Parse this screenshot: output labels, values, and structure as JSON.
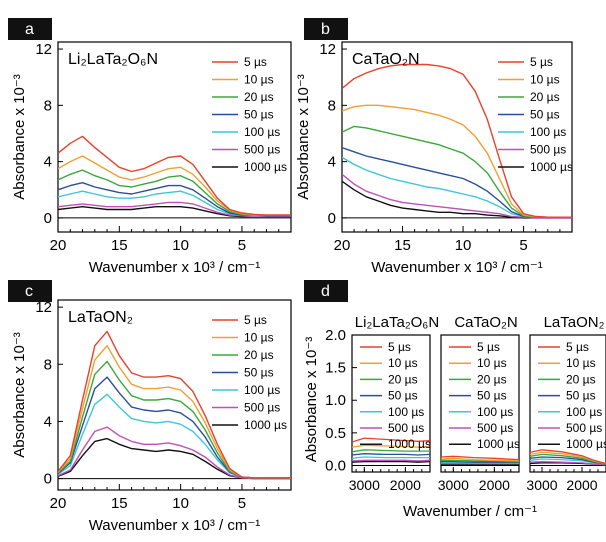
{
  "legend_times": [
    "5 µs",
    "10 µs",
    "20 µs",
    "50 µs",
    "100 µs",
    "500 µs",
    "1000 µs"
  ],
  "series_colors": [
    "#e8412c",
    "#f0a030",
    "#3aa83a",
    "#2a4f9a",
    "#3ec6d8",
    "#c050b8",
    "#111111"
  ],
  "axis_labels": {
    "wavenumber_x1000": "Wavenumber x 10³ / cm⁻¹",
    "wavenumber": "Wavenumber / cm⁻¹",
    "absorbance_x1000": "Absorbance x 10⁻³"
  },
  "chart_data": [
    {
      "panel": "a",
      "type": "line",
      "sample": "Li₂LaTa₂O₆N",
      "x_range": [
        20,
        1
      ],
      "x_ticks": [
        20,
        15,
        10,
        5
      ],
      "ylim": [
        -1,
        12.5
      ],
      "y_ticks": [
        0,
        4,
        8,
        12
      ],
      "x": [
        20,
        19,
        18,
        17,
        16,
        15,
        14,
        13,
        12,
        11,
        10,
        9,
        8,
        7,
        6,
        5,
        4,
        3,
        2,
        1
      ],
      "series": [
        {
          "name": "5 µs",
          "values": [
            4.6,
            5.3,
            5.8,
            5.0,
            4.3,
            3.6,
            3.3,
            3.5,
            3.9,
            4.3,
            4.4,
            3.8,
            2.6,
            1.4,
            0.6,
            0.35,
            0.25,
            0.2,
            0.2,
            0.2
          ]
        },
        {
          "name": "10 µs",
          "values": [
            3.5,
            4.0,
            4.4,
            3.9,
            3.4,
            2.9,
            2.7,
            2.9,
            3.2,
            3.5,
            3.6,
            3.1,
            2.2,
            1.2,
            0.55,
            0.3,
            0.2,
            0.2,
            0.2,
            0.2
          ]
        },
        {
          "name": "20 µs",
          "values": [
            2.7,
            3.1,
            3.4,
            3.0,
            2.7,
            2.3,
            2.2,
            2.4,
            2.6,
            2.9,
            3.0,
            2.6,
            1.8,
            1.0,
            0.45,
            0.25,
            0.2,
            0.2,
            0.2,
            0.2
          ]
        },
        {
          "name": "50 µs",
          "values": [
            2.0,
            2.3,
            2.5,
            2.2,
            2.0,
            1.8,
            1.7,
            1.9,
            2.1,
            2.3,
            2.3,
            2.0,
            1.4,
            0.8,
            0.35,
            0.2,
            0.2,
            0.15,
            0.15,
            0.15
          ]
        },
        {
          "name": "100 µs",
          "values": [
            1.5,
            1.7,
            1.9,
            1.7,
            1.5,
            1.4,
            1.4,
            1.5,
            1.7,
            1.8,
            1.9,
            1.6,
            1.1,
            0.6,
            0.3,
            0.2,
            0.15,
            0.15,
            0.15,
            0.15
          ]
        },
        {
          "name": "500 µs",
          "values": [
            0.8,
            0.9,
            1.0,
            0.9,
            0.8,
            0.8,
            0.8,
            0.9,
            1.0,
            1.1,
            1.1,
            1.0,
            0.7,
            0.4,
            0.2,
            0.15,
            0.1,
            0.1,
            0.1,
            0.1
          ]
        },
        {
          "name": "1000 µs",
          "values": [
            0.6,
            0.7,
            0.8,
            0.7,
            0.6,
            0.6,
            0.6,
            0.7,
            0.8,
            0.8,
            0.8,
            0.7,
            0.5,
            0.3,
            0.15,
            0.1,
            0.1,
            0.1,
            0.1,
            0.1
          ]
        }
      ]
    },
    {
      "panel": "b",
      "type": "line",
      "sample": "CaTaO₂N",
      "x_range": [
        20,
        1
      ],
      "x_ticks": [
        20,
        15,
        10,
        5
      ],
      "ylim": [
        -1,
        12.5
      ],
      "y_ticks": [
        0,
        4,
        8,
        12
      ],
      "x": [
        20,
        19,
        18,
        17,
        16,
        15,
        14,
        13,
        12,
        11,
        10,
        9,
        8,
        7,
        6,
        5,
        4,
        3,
        2,
        1
      ],
      "series": [
        {
          "name": "5 µs",
          "values": [
            9.2,
            9.9,
            10.3,
            10.6,
            10.8,
            10.9,
            10.9,
            10.9,
            10.8,
            10.6,
            10.2,
            9.0,
            7.0,
            4.2,
            1.5,
            0.3,
            0.1,
            0.05,
            0.05,
            0.05
          ]
        },
        {
          "name": "10 µs",
          "values": [
            7.6,
            7.9,
            8.0,
            8.0,
            7.9,
            7.8,
            7.7,
            7.5,
            7.3,
            7.0,
            6.6,
            5.8,
            4.6,
            2.8,
            1.0,
            0.2,
            0.1,
            0.05,
            0.05,
            0.05
          ]
        },
        {
          "name": "20 µs",
          "values": [
            6.1,
            6.5,
            6.4,
            6.2,
            6.0,
            5.8,
            5.6,
            5.4,
            5.2,
            4.9,
            4.6,
            4.0,
            3.2,
            1.9,
            0.7,
            0.15,
            0.05,
            0.05,
            0.05,
            0.05
          ]
        },
        {
          "name": "50 µs",
          "values": [
            5.0,
            4.7,
            4.4,
            4.2,
            4.0,
            3.8,
            3.6,
            3.4,
            3.2,
            3.0,
            2.8,
            2.4,
            1.9,
            1.2,
            0.45,
            0.1,
            0.05,
            0.05,
            0.05,
            0.05
          ]
        },
        {
          "name": "100 µs",
          "values": [
            4.3,
            3.8,
            3.4,
            3.1,
            2.8,
            2.6,
            2.4,
            2.2,
            2.1,
            1.9,
            1.7,
            1.5,
            1.2,
            0.8,
            0.3,
            0.1,
            0.05,
            0.05,
            0.05,
            0.05
          ]
        },
        {
          "name": "500 µs",
          "values": [
            3.1,
            2.4,
            1.9,
            1.6,
            1.3,
            1.1,
            1.0,
            0.9,
            0.8,
            0.7,
            0.6,
            0.5,
            0.4,
            0.3,
            0.1,
            0.05,
            0.0,
            0.0,
            0.0,
            0.0
          ]
        },
        {
          "name": "1000 µs",
          "values": [
            2.6,
            2.0,
            1.5,
            1.2,
            0.9,
            0.7,
            0.6,
            0.5,
            0.4,
            0.4,
            0.3,
            0.3,
            0.2,
            0.15,
            0.05,
            0.0,
            0.0,
            0.0,
            0.0,
            0.0
          ]
        }
      ]
    },
    {
      "panel": "c",
      "type": "line",
      "sample": "LaTaON₂",
      "x_range": [
        20,
        1
      ],
      "x_ticks": [
        20,
        15,
        10,
        5
      ],
      "ylim": [
        -0.8,
        12.5
      ],
      "y_ticks": [
        0,
        4,
        8,
        12
      ],
      "x": [
        20,
        19,
        18,
        17,
        16,
        15,
        14,
        13,
        12,
        11,
        10,
        9,
        8,
        7,
        6,
        5,
        4,
        3,
        2,
        1
      ],
      "series": [
        {
          "name": "5 µs",
          "values": [
            0.5,
            1.6,
            5.5,
            9.3,
            10.3,
            8.6,
            7.4,
            7.1,
            7.1,
            7.2,
            7.0,
            6.1,
            4.4,
            2.4,
            0.7,
            0.1,
            0.05,
            0.05,
            0.05,
            0.05
          ]
        },
        {
          "name": "10 µs",
          "values": [
            0.45,
            1.4,
            4.9,
            8.3,
            9.3,
            7.8,
            6.6,
            6.3,
            6.3,
            6.4,
            6.2,
            5.4,
            3.9,
            2.1,
            0.6,
            0.1,
            0.05,
            0.05,
            0.05,
            0.05
          ]
        },
        {
          "name": "20 µs",
          "values": [
            0.4,
            1.2,
            4.3,
            7.3,
            8.2,
            6.9,
            5.8,
            5.5,
            5.5,
            5.6,
            5.4,
            4.7,
            3.4,
            1.8,
            0.5,
            0.1,
            0.05,
            0.05,
            0.05,
            0.05
          ]
        },
        {
          "name": "50 µs",
          "values": [
            0.35,
            1.1,
            3.7,
            6.3,
            7.1,
            6.0,
            5.0,
            4.8,
            4.7,
            4.8,
            4.6,
            4.0,
            2.9,
            1.5,
            0.45,
            0.1,
            0.05,
            0.05,
            0.05,
            0.05
          ]
        },
        {
          "name": "100 µs",
          "values": [
            0.3,
            0.9,
            3.1,
            5.2,
            5.9,
            5.0,
            4.2,
            4.0,
            3.9,
            4.0,
            3.8,
            3.3,
            2.4,
            1.3,
            0.4,
            0.1,
            0.05,
            0.05,
            0.05,
            0.05
          ]
        },
        {
          "name": "500 µs",
          "values": [
            0.2,
            0.6,
            2.0,
            3.3,
            3.6,
            3.0,
            2.6,
            2.4,
            2.4,
            2.5,
            2.3,
            2.0,
            1.5,
            0.8,
            0.25,
            0.05,
            0.0,
            0.0,
            0.0,
            0.0
          ]
        },
        {
          "name": "1000 µs",
          "values": [
            0.15,
            0.5,
            1.6,
            2.6,
            2.8,
            2.4,
            2.1,
            2.0,
            1.9,
            2.0,
            1.9,
            1.7,
            1.2,
            0.65,
            0.2,
            0.05,
            0.0,
            0.0,
            0.0,
            0.0
          ]
        }
      ]
    },
    {
      "panel": "d",
      "type": "line",
      "ylim": [
        -0.1,
        2.0
      ],
      "y_ticks": [
        0.0,
        0.5,
        1.0,
        1.5,
        2.0
      ],
      "subplots": [
        {
          "sample": "Li₂LaTa₂O₆N",
          "x_ticks": [
            3000,
            2000
          ],
          "x_range": [
            3300,
            1400
          ],
          "x": [
            3300,
            3000,
            2500,
            2000,
            1700,
            1400
          ],
          "series": [
            {
              "name": "5 µs",
              "values": [
                0.36,
                0.42,
                0.4,
                0.38,
                0.37,
                0.38
              ]
            },
            {
              "name": "10 µs",
              "values": [
                0.28,
                0.31,
                0.3,
                0.29,
                0.28,
                0.29
              ]
            },
            {
              "name": "20 µs",
              "values": [
                0.21,
                0.24,
                0.23,
                0.22,
                0.22,
                0.22
              ]
            },
            {
              "name": "50 µs",
              "values": [
                0.16,
                0.18,
                0.17,
                0.17,
                0.16,
                0.17
              ]
            },
            {
              "name": "100 µs",
              "values": [
                0.11,
                0.13,
                0.12,
                0.12,
                0.12,
                0.12
              ]
            },
            {
              "name": "500 µs",
              "values": [
                0.07,
                0.08,
                0.08,
                0.08,
                0.07,
                0.08
              ]
            },
            {
              "name": "1000 µs",
              "values": [
                0.05,
                0.06,
                0.06,
                0.06,
                0.05,
                0.06
              ]
            }
          ]
        },
        {
          "sample": "CaTaO₂N",
          "x_ticks": [
            3000,
            2000
          ],
          "x_range": [
            3300,
            1400
          ],
          "x": [
            3300,
            3000,
            2500,
            2000,
            1700,
            1400
          ],
          "series": [
            {
              "name": "5 µs",
              "values": [
                0.13,
                0.14,
                0.12,
                0.11,
                0.1,
                0.09
              ]
            },
            {
              "name": "10 µs",
              "values": [
                0.1,
                0.11,
                0.09,
                0.08,
                0.08,
                0.07
              ]
            },
            {
              "name": "20 µs",
              "values": [
                0.08,
                0.08,
                0.07,
                0.07,
                0.06,
                0.06
              ]
            },
            {
              "name": "50 µs",
              "values": [
                0.06,
                0.06,
                0.05,
                0.05,
                0.05,
                0.05
              ]
            },
            {
              "name": "100 µs",
              "values": [
                0.05,
                0.05,
                0.04,
                0.04,
                0.04,
                0.04
              ]
            },
            {
              "name": "500 µs",
              "values": [
                0.03,
                0.03,
                0.03,
                0.03,
                0.03,
                0.03
              ]
            },
            {
              "name": "1000 µs",
              "values": [
                0.02,
                0.02,
                0.02,
                0.02,
                0.02,
                0.02
              ]
            }
          ]
        },
        {
          "sample": "LaTaON₂",
          "x_ticks": [
            3000,
            2000
          ],
          "x_range": [
            3300,
            1400
          ],
          "x": [
            3300,
            3000,
            2500,
            2000,
            1700,
            1400
          ],
          "series": [
            {
              "name": "5 µs",
              "values": [
                0.2,
                0.24,
                0.21,
                0.15,
                0.08,
                0.03
              ]
            },
            {
              "name": "10 µs",
              "values": [
                0.17,
                0.2,
                0.18,
                0.13,
                0.07,
                0.03
              ]
            },
            {
              "name": "20 µs",
              "values": [
                0.14,
                0.17,
                0.15,
                0.11,
                0.06,
                0.02
              ]
            },
            {
              "name": "50 µs",
              "values": [
                0.11,
                0.13,
                0.12,
                0.09,
                0.05,
                0.02
              ]
            },
            {
              "name": "100 µs",
              "values": [
                0.08,
                0.1,
                0.09,
                0.07,
                0.04,
                0.02
              ]
            },
            {
              "name": "500 µs",
              "values": [
                0.05,
                0.06,
                0.05,
                0.04,
                0.02,
                0.01
              ]
            },
            {
              "name": "1000 µs",
              "values": [
                0.03,
                0.04,
                0.04,
                0.03,
                0.02,
                0.01
              ]
            }
          ]
        }
      ]
    }
  ]
}
